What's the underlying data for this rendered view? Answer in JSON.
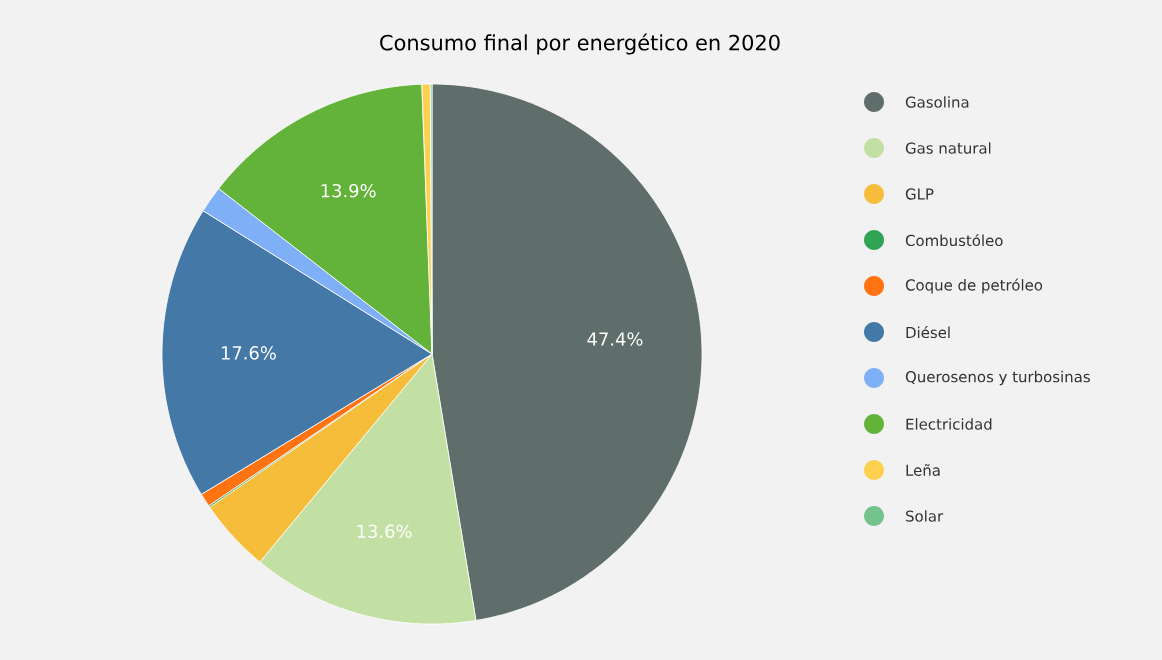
{
  "chart_data": {
    "type": "pie",
    "title": "Consumo final por energético en 2020",
    "categories": [
      "Gasolina",
      "Gas natural",
      "GLP",
      "Combustóleo",
      "Coque de petróleo",
      "Diésel",
      "Querosenos y turbosinas",
      "Electricidad",
      "Leña",
      "Solar"
    ],
    "values": [
      47.4,
      13.6,
      4.4,
      0.1,
      0.8,
      17.6,
      1.6,
      13.9,
      0.5,
      0.1
    ],
    "value_labels": [
      "47.4%",
      "13.6%",
      null,
      null,
      null,
      "17.6%",
      null,
      "13.9%",
      null,
      null
    ],
    "colors": [
      "#5f6e6b",
      "#c2dfa4",
      "#f5bd3a",
      "#31a354",
      "#ff7410",
      "#4478a6",
      "#7fb0f7",
      "#63b23a",
      "#fdd14f",
      "#74c38d"
    ],
    "legend": "right"
  }
}
